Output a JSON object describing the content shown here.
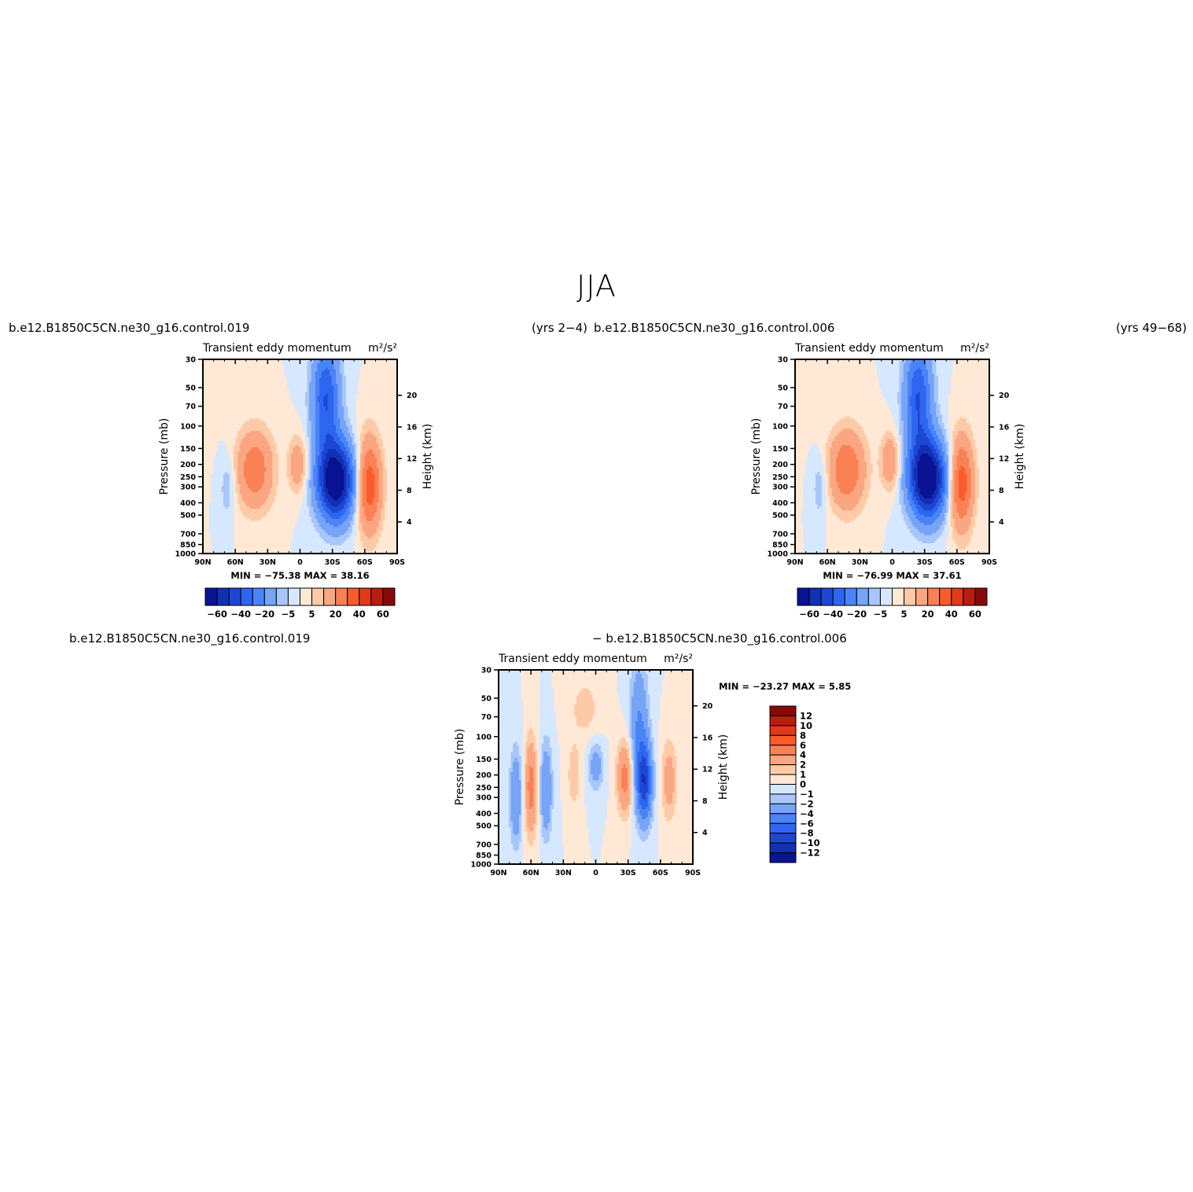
{
  "main_title": "JJA",
  "case_labels": {
    "left": "b.e12.B1850C5CN.ne30_g16.control.019",
    "center_years": "(yrs 2−4)",
    "center_case": "b.e12.B1850C5CN.ne30_g16.control.006",
    "right_years": "(yrs 49−68)",
    "diff_left": "b.e12.B1850C5CN.ne30_g16.control.019",
    "diff_right": "− b.e12.B1850C5CN.ne30_g16.control.006"
  },
  "colors": {
    "blues": [
      "#0a1391",
      "#1230b4",
      "#1c47d1",
      "#2d66f0",
      "#4a84f7",
      "#76a4f6",
      "#a8c6fb",
      "#d6e8ff"
    ],
    "reds": [
      "#ffe8d5",
      "#fccaa6",
      "#fba682",
      "#fa8155",
      "#f95c2a",
      "#e2391b",
      "#b81e10",
      "#870a0a"
    ]
  },
  "chart_data": [
    {
      "type": "heatmap",
      "title": "Transient eddy momentum",
      "units_label": "m²/s²",
      "xlabel": "",
      "ylabel": "Pressure (mb)",
      "ylabel_right": "Height (km)",
      "x_ticks": [
        "90N",
        "60N",
        "30N",
        "0",
        "30S",
        "60S",
        "90S"
      ],
      "y_ticks": [
        30,
        50,
        70,
        100,
        150,
        200,
        250,
        300,
        400,
        500,
        700,
        850,
        1000
      ],
      "y_ticks_right": [
        20,
        16,
        12,
        8,
        4
      ],
      "xlim": [
        90,
        -90
      ],
      "ylim": [
        1000,
        30
      ],
      "y_scale": "log",
      "stats_text": "MIN = −75.38   MAX =   38.16",
      "colorbar_labels": [
        "−60",
        "−40",
        "−20",
        "−5",
        "5",
        "20",
        "40",
        "60"
      ],
      "features": [
        {
          "lat": -33,
          "p": 270,
          "value": -75,
          "dlat": 12,
          "dlp": 0.5
        },
        {
          "lat": -24,
          "p": 60,
          "value": -40,
          "dlat": 9,
          "dlp": 0.7
        },
        {
          "lat": -64,
          "p": 290,
          "value": 38,
          "dlat": 8,
          "dlp": 0.6
        },
        {
          "lat": 42,
          "p": 220,
          "value": 28,
          "dlat": 12,
          "dlp": 0.5
        },
        {
          "lat": 2,
          "p": 200,
          "value": 18,
          "dlat": 6,
          "dlp": 0.35
        },
        {
          "lat": 67,
          "p": 300,
          "value": -10,
          "dlat": 5,
          "dlp": 0.4
        }
      ]
    },
    {
      "type": "heatmap",
      "title": "Transient eddy momentum",
      "units_label": "m²/s²",
      "xlabel": "",
      "ylabel": "Pressure (mb)",
      "ylabel_right": "Height (km)",
      "x_ticks": [
        "90N",
        "60N",
        "30N",
        "0",
        "30S",
        "60S",
        "90S"
      ],
      "y_ticks": [
        30,
        50,
        70,
        100,
        150,
        200,
        250,
        300,
        400,
        500,
        700,
        850,
        1000
      ],
      "y_ticks_right": [
        20,
        16,
        12,
        8,
        4
      ],
      "xlim": [
        90,
        -90
      ],
      "ylim": [
        1000,
        30
      ],
      "y_scale": "log",
      "stats_text": "MIN = −76.99   MAX =   37.61",
      "colorbar_labels": [
        "−60",
        "−40",
        "−20",
        "−5",
        "5",
        "20",
        "40",
        "60"
      ],
      "features": [
        {
          "lat": -33,
          "p": 260,
          "value": -77,
          "dlat": 12,
          "dlp": 0.5
        },
        {
          "lat": -24,
          "p": 60,
          "value": -40,
          "dlat": 9,
          "dlp": 0.7
        },
        {
          "lat": -64,
          "p": 280,
          "value": 37,
          "dlat": 8,
          "dlp": 0.6
        },
        {
          "lat": 42,
          "p": 220,
          "value": 30,
          "dlat": 12,
          "dlp": 0.5
        },
        {
          "lat": 2,
          "p": 190,
          "value": 20,
          "dlat": 6,
          "dlp": 0.35
        },
        {
          "lat": 67,
          "p": 300,
          "value": -10,
          "dlat": 5,
          "dlp": 0.4
        }
      ]
    },
    {
      "type": "heatmap",
      "title": "Transient eddy momentum",
      "units_label": "m²/s²",
      "xlabel": "",
      "ylabel": "Pressure (mb)",
      "ylabel_right": "Height (km)",
      "x_ticks": [
        "90N",
        "60N",
        "30N",
        "0",
        "30S",
        "60S",
        "90S"
      ],
      "y_ticks": [
        30,
        50,
        70,
        100,
        150,
        200,
        250,
        300,
        400,
        500,
        700,
        850,
        1000
      ],
      "y_ticks_right": [
        20,
        16,
        12,
        8,
        4
      ],
      "xlim": [
        90,
        -90
      ],
      "ylim": [
        1000,
        30
      ],
      "y_scale": "log",
      "stats_text": "MIN = −23.27   MAX =     5.85",
      "colorbar_labels": [
        "12",
        "10",
        "8",
        "6",
        "4",
        "2",
        "1",
        "0",
        "−1",
        "−2",
        "−4",
        "−6",
        "−8",
        "−10",
        "−12"
      ],
      "features": [
        {
          "lat": -45,
          "p": 230,
          "value": -9,
          "dlat": 5,
          "dlp": 0.5
        },
        {
          "lat": -40,
          "p": 80,
          "value": -4,
          "dlat": 6,
          "dlp": 0.8
        },
        {
          "lat": -27,
          "p": 210,
          "value": 5,
          "dlat": 5,
          "dlp": 0.45
        },
        {
          "lat": 60,
          "p": 250,
          "value": 5,
          "dlat": 4,
          "dlp": 0.6
        },
        {
          "lat": 74,
          "p": 300,
          "value": -4,
          "dlat": 4,
          "dlp": 0.6
        },
        {
          "lat": 46,
          "p": 260,
          "value": -4,
          "dlat": 4,
          "dlp": 0.6
        },
        {
          "lat": 0,
          "p": 170,
          "value": -3,
          "dlat": 5,
          "dlp": 0.3
        },
        {
          "lat": 20,
          "p": 200,
          "value": 2,
          "dlat": 4,
          "dlp": 0.4
        },
        {
          "lat": -68,
          "p": 220,
          "value": 3,
          "dlat": 5,
          "dlp": 0.5
        },
        {
          "lat": 10,
          "p": 60,
          "value": 1.5,
          "dlat": 10,
          "dlp": 0.4
        }
      ]
    }
  ]
}
